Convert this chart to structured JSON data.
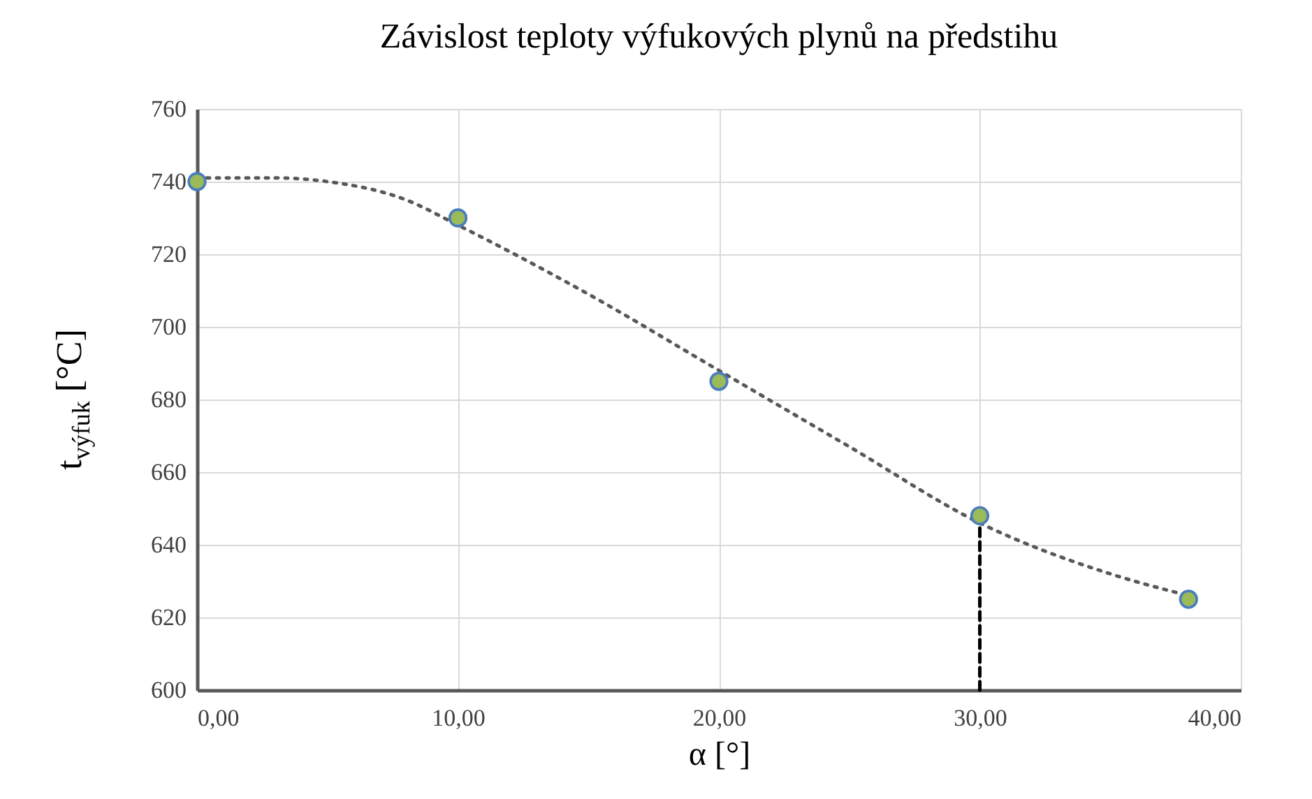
{
  "chart_data": {
    "type": "scatter",
    "title": "Závislost teploty výfukových plynů na předstihu",
    "xlabel": "α [°]",
    "ylabel": "t$_{výfuk}$ [°C]",
    "xlim": [
      0,
      40
    ],
    "xticks": [
      {
        "value": 0,
        "label": "0,00"
      },
      {
        "value": 10,
        "label": "10,00"
      },
      {
        "value": 20,
        "label": "20,00"
      },
      {
        "value": 30,
        "label": "30,00"
      },
      {
        "value": 40,
        "label": "40,00"
      }
    ],
    "ylim": [
      600,
      760
    ],
    "yticks": [
      600,
      620,
      640,
      660,
      680,
      700,
      720,
      740,
      760
    ],
    "grid": true,
    "marker": "circle",
    "x": [
      0,
      10,
      20,
      30,
      38
    ],
    "series": [
      {
        "type": "line",
        "marker": "none",
        "line_style": "dotted",
        "color": "#595959",
        "x": [
          0,
          3,
          5,
          8,
          10,
          15,
          20,
          25,
          30,
          35,
          38
        ],
        "values": [
          741,
          741,
          740,
          735,
          728,
          709,
          688,
          667,
          646,
          632,
          626
        ]
      },
      {
        "type": "line",
        "marker": "none",
        "line_style": "dashed",
        "color": "#000000",
        "x": [
          30,
          30
        ],
        "values": [
          600,
          648
        ]
      },
      {
        "color": "#9bbb59",
        "values": [
          740,
          730,
          685,
          648,
          625
        ]
      }
    ]
  }
}
